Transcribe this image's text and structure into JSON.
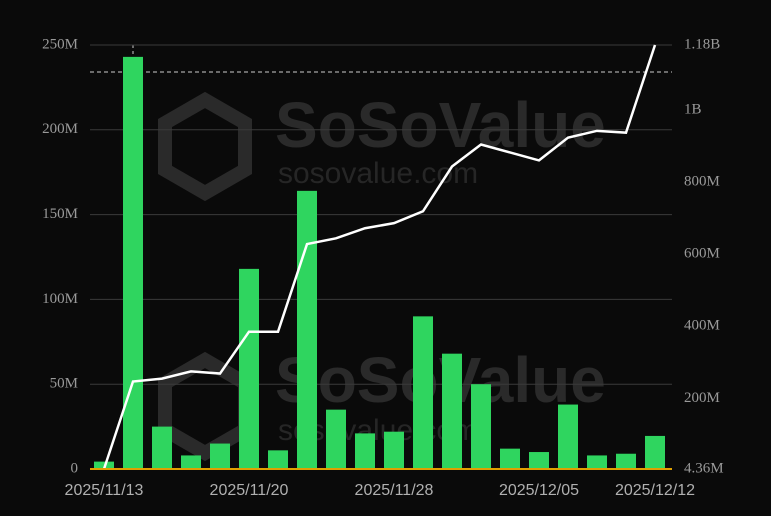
{
  "chart_data": {
    "type": "bar-line",
    "watermark": "SoSoValue",
    "watermark_sub": "sosovalue.com",
    "categories": [
      "2025/11/13",
      null,
      null,
      null,
      null,
      "2025/11/20",
      null,
      null,
      null,
      null,
      "2025/11/28",
      null,
      null,
      null,
      null,
      "2025/12/05",
      null,
      null,
      null,
      "2025/12/12"
    ],
    "series": [
      {
        "type": "bar",
        "color": "#2fd55f",
        "axis": "y",
        "values": [
          4360000,
          243000000,
          25000000,
          8000000,
          15000000,
          118000000,
          11000000,
          164000000,
          35000000,
          21000000,
          22000000,
          90000000,
          68000000,
          50000000,
          12000000,
          10000000,
          38000000,
          8000000,
          9000000,
          19500000
        ]
      },
      {
        "type": "line",
        "color": "#ffffff",
        "axis": "y2",
        "values": [
          4360000,
          247000000,
          255000000,
          275000000,
          269000000,
          385000000,
          385000000,
          628000000,
          644000000,
          672000000,
          686000000,
          719000000,
          843000000,
          904000000,
          882000000,
          860000000,
          923000000,
          942000000,
          937000000,
          1180000000
        ]
      }
    ],
    "ylim": [
      0,
      250000000
    ],
    "yticks": [
      {
        "value": 0,
        "label": "0"
      },
      {
        "value": 50000000,
        "label": "50M"
      },
      {
        "value": 100000000,
        "label": "100M"
      },
      {
        "value": 150000000,
        "label": "150M"
      },
      {
        "value": 200000000,
        "label": "200M"
      },
      {
        "value": 250000000,
        "label": "250M"
      }
    ],
    "y2lim": [
      4360000,
      1180000000
    ],
    "y2ticks": [
      {
        "value": 4360000,
        "label": "4.36M"
      },
      {
        "value": 200000000,
        "label": "200M"
      },
      {
        "value": 400000000,
        "label": "400M"
      },
      {
        "value": 600000000,
        "label": "600M"
      },
      {
        "value": 800000000,
        "label": "800M"
      },
      {
        "value": 1000000000,
        "label": "1B"
      },
      {
        "value": 1180000000,
        "label": "1.18B"
      }
    ],
    "grid": true
  }
}
